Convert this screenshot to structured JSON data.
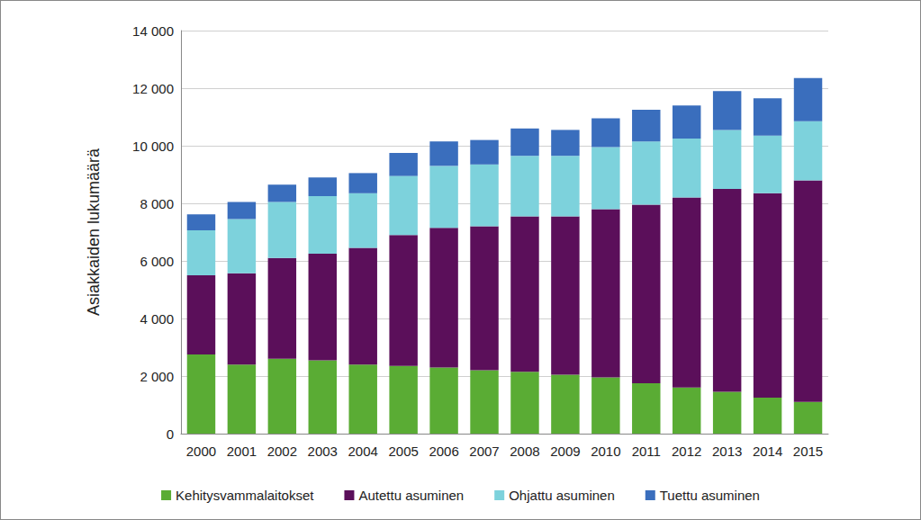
{
  "chart_data": {
    "type": "bar",
    "stacked": true,
    "grid": true,
    "legend": "bottom",
    "y_label": "Asiakkaiden lukumäärä",
    "categories": [
      "2000",
      "2001",
      "2002",
      "2003",
      "2004",
      "2005",
      "2006",
      "2007",
      "2008",
      "2009",
      "2010",
      "2011",
      "2012",
      "2013",
      "2014",
      "2015"
    ],
    "ylim": [
      0,
      14000
    ],
    "yticks": [
      {
        "value": 0,
        "label": "0"
      },
      {
        "value": 2000,
        "label": "2 000"
      },
      {
        "value": 4000,
        "label": "4 000"
      },
      {
        "value": 6000,
        "label": "6 000"
      },
      {
        "value": 8000,
        "label": "8 000"
      },
      {
        "value": 10000,
        "label": "10 000"
      },
      {
        "value": 12000,
        "label": "12 000"
      },
      {
        "value": 14000,
        "label": "14 000"
      }
    ],
    "series": [
      {
        "name": "Kehitysvammalaitokset",
        "color": "#5aac34",
        "values": [
          2750,
          2400,
          2600,
          2550,
          2400,
          2350,
          2300,
          2200,
          2150,
          2050,
          1950,
          1750,
          1600,
          1450,
          1250,
          1100
        ]
      },
      {
        "name": "Autettu asuminen",
        "color": "#5b0f5a",
        "values": [
          2750,
          3170,
          3500,
          3700,
          4050,
          4550,
          4850,
          5000,
          5400,
          5500,
          5850,
          6200,
          6600,
          7050,
          7100,
          7700
        ]
      },
      {
        "name": "Ohjattu asuminen",
        "color": "#7dd2dc",
        "values": [
          1560,
          1880,
          1950,
          2000,
          1900,
          2050,
          2150,
          2150,
          2100,
          2100,
          2150,
          2200,
          2050,
          2050,
          2000,
          2050
        ]
      },
      {
        "name": "Tuettu asuminen",
        "color": "#3a6ebd",
        "values": [
          560,
          600,
          600,
          650,
          700,
          800,
          850,
          850,
          950,
          900,
          1000,
          1100,
          1150,
          1350,
          1300,
          1500
        ]
      }
    ]
  }
}
